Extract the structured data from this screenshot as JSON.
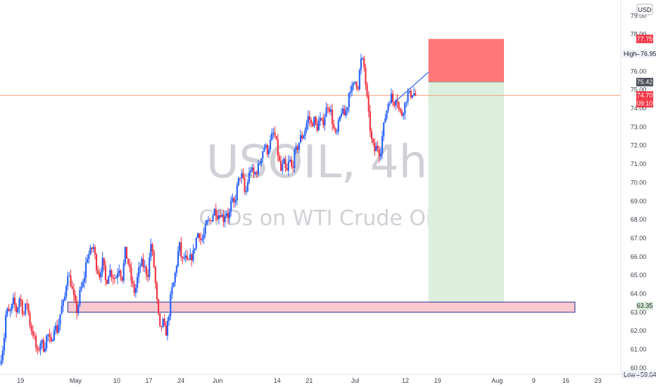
{
  "watermark": {
    "symbol": "USOIL, 4h",
    "description": "CFDs on WTI Crude Oil"
  },
  "chart_data": {
    "type": "candlestick",
    "title": "",
    "currency": "USD",
    "ylim": [
      59.65,
      79.85
    ],
    "y_ticks": [
      "79.00",
      "78.00",
      "76.00",
      "75.00",
      "74.00",
      "73.00",
      "72.00",
      "71.00",
      "70.00",
      "69.00",
      "68.00",
      "67.00",
      "66.00",
      "65.00",
      "64.00",
      "63.00",
      "62.00",
      "61.00",
      "60.00"
    ],
    "x_ticks": [
      "19",
      "May",
      "10",
      "17",
      "24",
      "Jun",
      "14",
      "21",
      "Jul",
      "12",
      "19",
      "Aug",
      "9",
      "16",
      "23"
    ],
    "x_tick_days": [
      19,
      31,
      40,
      47,
      54,
      62,
      75,
      82,
      92,
      103,
      110,
      123,
      131,
      138,
      145
    ],
    "x_unit": "day",
    "xlim": [
      14.5,
      150
    ],
    "price_path": [
      [
        14.6,
        60.2
      ],
      [
        15.5,
        61.4
      ],
      [
        16,
        63.1
      ],
      [
        16.8,
        62.9
      ],
      [
        17.6,
        63.6
      ],
      [
        18.3,
        63.0
      ],
      [
        19,
        63.9
      ],
      [
        19.8,
        62.8
      ],
      [
        20.5,
        63.6
      ],
      [
        21.3,
        62.2
      ],
      [
        22,
        61.8
      ],
      [
        22.8,
        60.7
      ],
      [
        23.6,
        61.5
      ],
      [
        24.3,
        61.0
      ],
      [
        25,
        61.9
      ],
      [
        25.8,
        61.2
      ],
      [
        26.5,
        62.3
      ],
      [
        27.2,
        62.0
      ],
      [
        28,
        63.2
      ],
      [
        28.7,
        63.6
      ],
      [
        29.4,
        65.2
      ],
      [
        30.1,
        64.6
      ],
      [
        30.8,
        63.7
      ],
      [
        31.5,
        63.0
      ],
      [
        32.2,
        64.2
      ],
      [
        32.9,
        64.6
      ],
      [
        33.6,
        66.0
      ],
      [
        34.3,
        66.2
      ],
      [
        35,
        66.6
      ],
      [
        35.7,
        65.5
      ],
      [
        36.4,
        65.0
      ],
      [
        37.1,
        65.8
      ],
      [
        37.8,
        64.5
      ],
      [
        38.5,
        65.3
      ],
      [
        39.2,
        65.0
      ],
      [
        39.9,
        64.8
      ],
      [
        40.6,
        65.5
      ],
      [
        41.3,
        64.8
      ],
      [
        42,
        66.3
      ],
      [
        42.7,
        65.6
      ],
      [
        43.4,
        64.6
      ],
      [
        44.1,
        64.0
      ],
      [
        44.8,
        65.1
      ],
      [
        45.5,
        65.7
      ],
      [
        46.2,
        65.4
      ],
      [
        46.9,
        65.0
      ],
      [
        47.6,
        66.7
      ],
      [
        48.3,
        65.4
      ],
      [
        49,
        63.3
      ],
      [
        49.6,
        62.0
      ],
      [
        50.2,
        62.5
      ],
      [
        50.8,
        61.8
      ],
      [
        51.4,
        62.6
      ],
      [
        52,
        64.0
      ],
      [
        52.6,
        64.6
      ],
      [
        53.2,
        65.6
      ],
      [
        53.8,
        66.7
      ],
      [
        54.4,
        65.7
      ],
      [
        55,
        66.0
      ],
      [
        55.6,
        65.6
      ],
      [
        56.2,
        65.9
      ],
      [
        56.8,
        66.1
      ],
      [
        57.4,
        66.9
      ],
      [
        58,
        67.4
      ],
      [
        58.6,
        66.8
      ],
      [
        59.2,
        67.2
      ],
      [
        59.8,
        67.8
      ],
      [
        60.4,
        67.9
      ],
      [
        61,
        68.2
      ],
      [
        61.6,
        68.6
      ],
      [
        62.2,
        68.2
      ],
      [
        62.8,
        68.4
      ],
      [
        63.4,
        68.0
      ],
      [
        64,
        68.5
      ],
      [
        64.6,
        68.1
      ],
      [
        65.2,
        69.0
      ],
      [
        65.8,
        68.8
      ],
      [
        66.4,
        69.7
      ],
      [
        67,
        70.4
      ],
      [
        67.6,
        70.3
      ],
      [
        68.2,
        69.2
      ],
      [
        68.8,
        70.2
      ],
      [
        69.4,
        70.8
      ],
      [
        70,
        70.4
      ],
      [
        70.6,
        70.6
      ],
      [
        71.2,
        70.9
      ],
      [
        71.8,
        71.6
      ],
      [
        72.4,
        72.0
      ],
      [
        73,
        71.7
      ],
      [
        73.6,
        72.1
      ],
      [
        74.2,
        72.7
      ],
      [
        74.8,
        72.4
      ],
      [
        75.4,
        71.4
      ],
      [
        76,
        70.6
      ],
      [
        76.6,
        71.1
      ],
      [
        77.2,
        70.4
      ],
      [
        77.8,
        71.3
      ],
      [
        78.4,
        70.7
      ],
      [
        79,
        71.6
      ],
      [
        79.6,
        71.9
      ],
      [
        80.2,
        72.4
      ],
      [
        80.8,
        72.5
      ],
      [
        81.4,
        73.0
      ],
      [
        82,
        73.6
      ],
      [
        82.6,
        73.1
      ],
      [
        83.2,
        73.4
      ],
      [
        83.8,
        72.9
      ],
      [
        84.4,
        73.4
      ],
      [
        85,
        73.1
      ],
      [
        85.6,
        73.7
      ],
      [
        86.2,
        74.2
      ],
      [
        86.8,
        73.9
      ],
      [
        87.4,
        73.0
      ],
      [
        88,
        72.4
      ],
      [
        88.6,
        73.2
      ],
      [
        89.2,
        73.9
      ],
      [
        89.8,
        73.6
      ],
      [
        90.4,
        74.0
      ],
      [
        91,
        75.2
      ],
      [
        91.6,
        75.0
      ],
      [
        92.2,
        75.5
      ],
      [
        92.8,
        75.2
      ],
      [
        93.4,
        76.6
      ],
      [
        94,
        76.5
      ],
      [
        94.6,
        75.0
      ],
      [
        95.2,
        73.4
      ],
      [
        95.8,
        72.2
      ],
      [
        96.4,
        71.7
      ],
      [
        97,
        72.0
      ],
      [
        97.6,
        71.5
      ],
      [
        98.2,
        72.7
      ],
      [
        98.8,
        73.6
      ],
      [
        99.4,
        74.3
      ],
      [
        100,
        74.7
      ],
      [
        100.6,
        74.2
      ],
      [
        101.2,
        74.8
      ],
      [
        101.8,
        73.8
      ],
      [
        102.4,
        73.7
      ],
      [
        103,
        74.2
      ],
      [
        103.6,
        74.8
      ],
      [
        104.2,
        74.7
      ],
      [
        104.8,
        74.9
      ],
      [
        105.3,
        74.7
      ]
    ],
    "trend_line": {
      "from": [
        100.7,
        74.35
      ],
      "to": [
        108,
        75.95
      ]
    },
    "position": {
      "type": "short",
      "x_range": [
        108,
        124.5
      ],
      "stop": 77.75,
      "entry": 75.42,
      "target": 63.35
    },
    "support_zone": {
      "x_range": [
        29.3,
        140
      ],
      "top": 63.55,
      "bottom": 63.0
    },
    "last_price": 74.7,
    "markers": {
      "stop_label": "77.75",
      "high_label": "High",
      "high_value": "76.95",
      "entry_label": "75.42",
      "last_label": "74.70",
      "countdown": "09:10",
      "target_label": "63.35",
      "low_label": "Low",
      "low_value": "59.64"
    },
    "colors": {
      "up": "#2962ff",
      "down": "#f23645",
      "stop_zone": "#ff7878",
      "target_zone": "#dcefdc",
      "support_fill": "#f8c9cf",
      "support_border": "#2e3192",
      "trend_line": "#2962ff",
      "price_line": "#f7a07c"
    },
    "grid": false
  }
}
